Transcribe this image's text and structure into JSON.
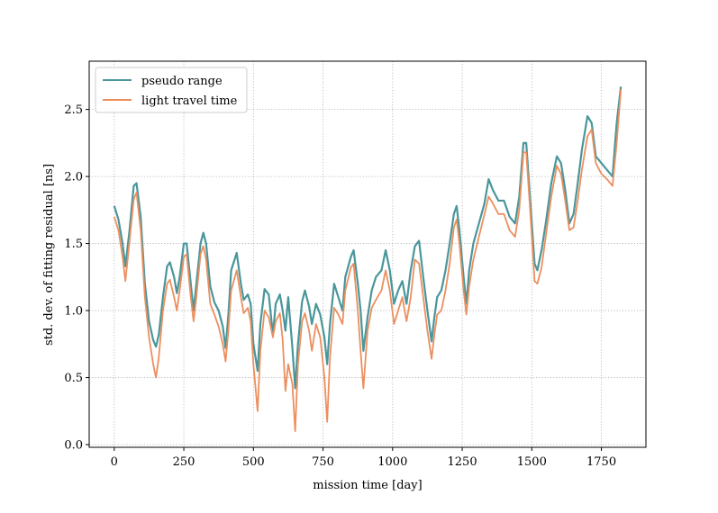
{
  "chart_data": {
    "type": "line",
    "title": "",
    "xlabel": "mission time [day]",
    "ylabel": "std. dev. of fitting residual [ns]",
    "xlim": [
      -90,
      1910
    ],
    "ylim": [
      -0.02,
      2.86
    ],
    "xticks": [
      0,
      250,
      500,
      750,
      1000,
      1250,
      1500,
      1750
    ],
    "yticks": [
      0.0,
      0.5,
      1.0,
      1.5,
      2.0,
      2.5
    ],
    "xtick_labels": [
      "0",
      "250",
      "500",
      "750",
      "1000",
      "1250",
      "1500",
      "1750"
    ],
    "ytick_labels": [
      "0.0",
      "0.5",
      "1.0",
      "1.5",
      "2.0",
      "2.5"
    ],
    "grid": true,
    "legend_position": "upper-left",
    "series": [
      {
        "name": "pseudo range",
        "color": "#4a969b",
        "points": [
          [
            0,
            1.78
          ],
          [
            15,
            1.68
          ],
          [
            30,
            1.5
          ],
          [
            40,
            1.33
          ],
          [
            55,
            1.6
          ],
          [
            70,
            1.93
          ],
          [
            80,
            1.95
          ],
          [
            95,
            1.7
          ],
          [
            110,
            1.2
          ],
          [
            125,
            0.92
          ],
          [
            140,
            0.78
          ],
          [
            150,
            0.73
          ],
          [
            160,
            0.82
          ],
          [
            175,
            1.1
          ],
          [
            190,
            1.33
          ],
          [
            200,
            1.36
          ],
          [
            215,
            1.25
          ],
          [
            225,
            1.13
          ],
          [
            235,
            1.25
          ],
          [
            250,
            1.5
          ],
          [
            260,
            1.5
          ],
          [
            275,
            1.2
          ],
          [
            285,
            1.0
          ],
          [
            295,
            1.2
          ],
          [
            310,
            1.5
          ],
          [
            320,
            1.58
          ],
          [
            330,
            1.5
          ],
          [
            345,
            1.18
          ],
          [
            360,
            1.06
          ],
          [
            375,
            1.0
          ],
          [
            390,
            0.88
          ],
          [
            400,
            0.72
          ],
          [
            410,
            0.97
          ],
          [
            420,
            1.3
          ],
          [
            440,
            1.43
          ],
          [
            455,
            1.2
          ],
          [
            465,
            1.08
          ],
          [
            480,
            1.12
          ],
          [
            490,
            1.05
          ],
          [
            500,
            0.75
          ],
          [
            515,
            0.55
          ],
          [
            525,
            0.9
          ],
          [
            540,
            1.16
          ],
          [
            555,
            1.12
          ],
          [
            570,
            0.82
          ],
          [
            580,
            1.05
          ],
          [
            595,
            1.12
          ],
          [
            605,
            1.0
          ],
          [
            615,
            0.85
          ],
          [
            625,
            1.1
          ],
          [
            640,
            0.72
          ],
          [
            650,
            0.42
          ],
          [
            660,
            0.75
          ],
          [
            675,
            1.07
          ],
          [
            685,
            1.15
          ],
          [
            700,
            1.03
          ],
          [
            710,
            0.9
          ],
          [
            725,
            1.05
          ],
          [
            740,
            0.97
          ],
          [
            755,
            0.8
          ],
          [
            765,
            0.6
          ],
          [
            775,
            0.9
          ],
          [
            790,
            1.2
          ],
          [
            805,
            1.1
          ],
          [
            820,
            1.0
          ],
          [
            830,
            1.25
          ],
          [
            850,
            1.4
          ],
          [
            860,
            1.45
          ],
          [
            875,
            1.2
          ],
          [
            885,
            1.0
          ],
          [
            895,
            0.7
          ],
          [
            910,
            0.95
          ],
          [
            925,
            1.15
          ],
          [
            940,
            1.25
          ],
          [
            960,
            1.3
          ],
          [
            975,
            1.45
          ],
          [
            990,
            1.3
          ],
          [
            1005,
            1.05
          ],
          [
            1020,
            1.15
          ],
          [
            1035,
            1.22
          ],
          [
            1050,
            1.05
          ],
          [
            1065,
            1.3
          ],
          [
            1080,
            1.48
          ],
          [
            1095,
            1.52
          ],
          [
            1110,
            1.25
          ],
          [
            1125,
            1.0
          ],
          [
            1140,
            0.77
          ],
          [
            1150,
            0.95
          ],
          [
            1160,
            1.1
          ],
          [
            1175,
            1.15
          ],
          [
            1190,
            1.3
          ],
          [
            1205,
            1.5
          ],
          [
            1220,
            1.72
          ],
          [
            1230,
            1.78
          ],
          [
            1240,
            1.6
          ],
          [
            1255,
            1.25
          ],
          [
            1265,
            1.05
          ],
          [
            1275,
            1.3
          ],
          [
            1290,
            1.5
          ],
          [
            1310,
            1.65
          ],
          [
            1330,
            1.8
          ],
          [
            1345,
            1.98
          ],
          [
            1360,
            1.9
          ],
          [
            1380,
            1.82
          ],
          [
            1400,
            1.82
          ],
          [
            1420,
            1.7
          ],
          [
            1440,
            1.65
          ],
          [
            1455,
            1.85
          ],
          [
            1470,
            2.25
          ],
          [
            1480,
            2.25
          ],
          [
            1495,
            1.8
          ],
          [
            1510,
            1.35
          ],
          [
            1520,
            1.3
          ],
          [
            1535,
            1.45
          ],
          [
            1550,
            1.65
          ],
          [
            1570,
            1.95
          ],
          [
            1590,
            2.15
          ],
          [
            1605,
            2.1
          ],
          [
            1620,
            1.9
          ],
          [
            1635,
            1.65
          ],
          [
            1650,
            1.72
          ],
          [
            1665,
            1.95
          ],
          [
            1680,
            2.2
          ],
          [
            1700,
            2.45
          ],
          [
            1715,
            2.4
          ],
          [
            1730,
            2.15
          ],
          [
            1750,
            2.1
          ],
          [
            1770,
            2.05
          ],
          [
            1790,
            2.0
          ],
          [
            1805,
            2.4
          ],
          [
            1820,
            2.67
          ]
        ]
      },
      {
        "name": "light travel time",
        "color": "#ec8f5e",
        "points": [
          [
            0,
            1.7
          ],
          [
            15,
            1.6
          ],
          [
            30,
            1.4
          ],
          [
            40,
            1.22
          ],
          [
            55,
            1.52
          ],
          [
            70,
            1.83
          ],
          [
            80,
            1.88
          ],
          [
            95,
            1.6
          ],
          [
            110,
            1.1
          ],
          [
            125,
            0.8
          ],
          [
            140,
            0.6
          ],
          [
            150,
            0.5
          ],
          [
            160,
            0.65
          ],
          [
            175,
            1.0
          ],
          [
            190,
            1.2
          ],
          [
            200,
            1.23
          ],
          [
            215,
            1.1
          ],
          [
            225,
            1.0
          ],
          [
            235,
            1.15
          ],
          [
            250,
            1.4
          ],
          [
            260,
            1.42
          ],
          [
            275,
            1.1
          ],
          [
            285,
            0.92
          ],
          [
            295,
            1.1
          ],
          [
            310,
            1.42
          ],
          [
            320,
            1.48
          ],
          [
            330,
            1.38
          ],
          [
            345,
            1.05
          ],
          [
            360,
            0.97
          ],
          [
            375,
            0.88
          ],
          [
            390,
            0.75
          ],
          [
            400,
            0.62
          ],
          [
            410,
            0.85
          ],
          [
            420,
            1.15
          ],
          [
            440,
            1.3
          ],
          [
            455,
            1.1
          ],
          [
            465,
            0.98
          ],
          [
            480,
            1.02
          ],
          [
            490,
            0.92
          ],
          [
            500,
            0.6
          ],
          [
            515,
            0.25
          ],
          [
            525,
            0.7
          ],
          [
            540,
            1.0
          ],
          [
            555,
            0.95
          ],
          [
            570,
            0.8
          ],
          [
            580,
            0.92
          ],
          [
            595,
            0.98
          ],
          [
            605,
            0.78
          ],
          [
            615,
            0.4
          ],
          [
            625,
            0.6
          ],
          [
            640,
            0.45
          ],
          [
            650,
            0.1
          ],
          [
            660,
            0.6
          ],
          [
            675,
            0.92
          ],
          [
            685,
            0.98
          ],
          [
            700,
            0.85
          ],
          [
            710,
            0.7
          ],
          [
            725,
            0.9
          ],
          [
            740,
            0.8
          ],
          [
            755,
            0.5
          ],
          [
            765,
            0.17
          ],
          [
            775,
            0.65
          ],
          [
            790,
            1.02
          ],
          [
            805,
            0.97
          ],
          [
            820,
            0.9
          ],
          [
            830,
            1.15
          ],
          [
            850,
            1.32
          ],
          [
            860,
            1.35
          ],
          [
            875,
            1.0
          ],
          [
            885,
            0.7
          ],
          [
            895,
            0.42
          ],
          [
            910,
            0.85
          ],
          [
            925,
            1.02
          ],
          [
            940,
            1.08
          ],
          [
            960,
            1.15
          ],
          [
            975,
            1.3
          ],
          [
            990,
            1.15
          ],
          [
            1005,
            0.9
          ],
          [
            1020,
            1.0
          ],
          [
            1035,
            1.1
          ],
          [
            1050,
            0.92
          ],
          [
            1065,
            1.1
          ],
          [
            1080,
            1.38
          ],
          [
            1095,
            1.35
          ],
          [
            1110,
            1.1
          ],
          [
            1125,
            0.85
          ],
          [
            1140,
            0.64
          ],
          [
            1150,
            0.82
          ],
          [
            1160,
            0.97
          ],
          [
            1175,
            1.0
          ],
          [
            1190,
            1.15
          ],
          [
            1205,
            1.35
          ],
          [
            1220,
            1.62
          ],
          [
            1230,
            1.68
          ],
          [
            1240,
            1.5
          ],
          [
            1255,
            1.15
          ],
          [
            1265,
            0.97
          ],
          [
            1275,
            1.18
          ],
          [
            1290,
            1.38
          ],
          [
            1310,
            1.55
          ],
          [
            1330,
            1.72
          ],
          [
            1345,
            1.85
          ],
          [
            1360,
            1.8
          ],
          [
            1380,
            1.72
          ],
          [
            1400,
            1.72
          ],
          [
            1420,
            1.6
          ],
          [
            1440,
            1.55
          ],
          [
            1455,
            1.75
          ],
          [
            1470,
            2.18
          ],
          [
            1480,
            2.18
          ],
          [
            1495,
            1.72
          ],
          [
            1510,
            1.22
          ],
          [
            1520,
            1.2
          ],
          [
            1535,
            1.32
          ],
          [
            1550,
            1.55
          ],
          [
            1570,
            1.85
          ],
          [
            1590,
            2.08
          ],
          [
            1605,
            2.02
          ],
          [
            1620,
            1.82
          ],
          [
            1635,
            1.6
          ],
          [
            1650,
            1.62
          ],
          [
            1665,
            1.82
          ],
          [
            1680,
            2.05
          ],
          [
            1700,
            2.3
          ],
          [
            1715,
            2.35
          ],
          [
            1730,
            2.1
          ],
          [
            1750,
            2.02
          ],
          [
            1770,
            1.98
          ],
          [
            1790,
            1.93
          ],
          [
            1805,
            2.25
          ],
          [
            1820,
            2.65
          ]
        ]
      }
    ]
  }
}
